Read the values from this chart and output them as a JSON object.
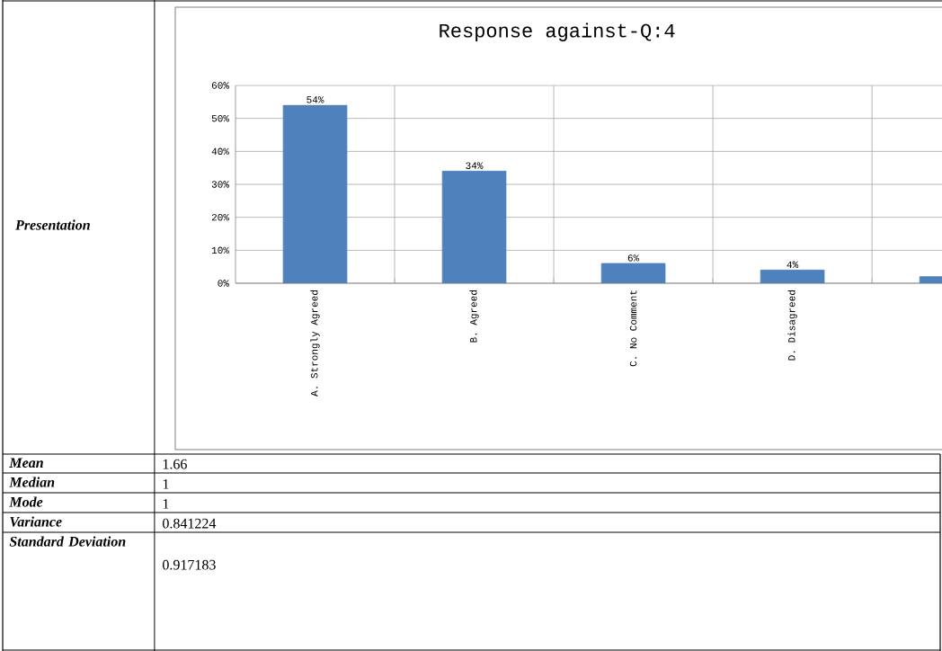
{
  "chart_data": {
    "type": "bar",
    "title": "Response against-Q:4",
    "categories": [
      "A. Strongly Agreed",
      "B. Agreed",
      "C. No Comment",
      "D. Disagreed",
      null
    ],
    "values": [
      54,
      34,
      6,
      4,
      2
    ],
    "value_labels": [
      "54%",
      "34%",
      "6%",
      "4%",
      null
    ],
    "color": "#4f81bd",
    "ylim": [
      0,
      60
    ],
    "yticks": [
      {
        "value": 0,
        "label": "0%"
      },
      {
        "value": 10,
        "label": "10%"
      },
      {
        "value": 20,
        "label": "20%"
      },
      {
        "value": 30,
        "label": "30%"
      },
      {
        "value": 40,
        "label": "40%"
      },
      {
        "value": 50,
        "label": "50%"
      },
      {
        "value": 60,
        "label": "60%"
      }
    ],
    "grid": true,
    "annotations": [
      "Presentation",
      "Mean",
      "1.66",
      "Median",
      "1",
      "Mode",
      "1",
      "Variance",
      "0.841224",
      "Standard Deviation",
      "0.917183"
    ]
  }
}
